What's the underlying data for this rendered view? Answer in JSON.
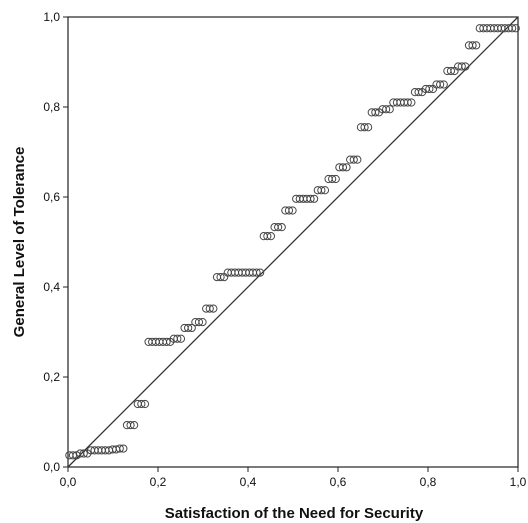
{
  "chart_data": {
    "type": "scatter",
    "title": "",
    "xlabel": "Satisfaction of the Need for Security",
    "ylabel": "General Level of Tolerance",
    "xlim": [
      0,
      1
    ],
    "ylim": [
      0,
      1
    ],
    "x_ticks": [
      "0,0",
      "0,2",
      "0,4",
      "0,6",
      "0,8",
      "1,0"
    ],
    "y_ticks": [
      "0,0",
      "0,2",
      "0,4",
      "0,6",
      "0,8",
      "1,0"
    ],
    "grid": false,
    "reference_line": {
      "from": [
        0,
        0
      ],
      "to": [
        1,
        1
      ]
    },
    "marker_color": "#444444",
    "points": {
      "x": [
        0.003,
        0.011,
        0.019,
        0.027,
        0.035,
        0.043,
        0.051,
        0.059,
        0.067,
        0.075,
        0.083,
        0.091,
        0.099,
        0.107,
        0.115,
        0.123,
        0.131,
        0.139,
        0.147,
        0.155,
        0.163,
        0.171,
        0.179,
        0.187,
        0.195,
        0.203,
        0.211,
        0.219,
        0.227,
        0.235,
        0.243,
        0.251,
        0.259,
        0.267,
        0.275,
        0.283,
        0.291,
        0.299,
        0.307,
        0.315,
        0.323,
        0.331,
        0.339,
        0.347,
        0.355,
        0.363,
        0.371,
        0.379,
        0.387,
        0.395,
        0.403,
        0.411,
        0.419,
        0.427,
        0.435,
        0.443,
        0.451,
        0.459,
        0.467,
        0.475,
        0.483,
        0.491,
        0.499,
        0.507,
        0.515,
        0.523,
        0.531,
        0.539,
        0.547,
        0.555,
        0.563,
        0.571,
        0.579,
        0.587,
        0.595,
        0.603,
        0.611,
        0.619,
        0.627,
        0.635,
        0.643,
        0.651,
        0.659,
        0.667,
        0.675,
        0.683,
        0.691,
        0.699,
        0.707,
        0.715,
        0.723,
        0.731,
        0.739,
        0.747,
        0.755,
        0.763,
        0.771,
        0.779,
        0.787,
        0.795,
        0.803,
        0.811,
        0.819,
        0.827,
        0.835,
        0.843,
        0.851,
        0.859,
        0.867,
        0.875,
        0.883,
        0.891,
        0.899,
        0.907,
        0.915,
        0.923,
        0.931,
        0.939,
        0.947,
        0.955,
        0.963,
        0.971,
        0.979,
        0.987,
        0.995
      ],
      "y": [
        0.026,
        0.026,
        0.026,
        0.03,
        0.03,
        0.03,
        0.037,
        0.037,
        0.037,
        0.037,
        0.037,
        0.037,
        0.039,
        0.039,
        0.041,
        0.041,
        0.093,
        0.093,
        0.093,
        0.14,
        0.14,
        0.14,
        0.278,
        0.278,
        0.278,
        0.278,
        0.278,
        0.278,
        0.278,
        0.285,
        0.285,
        0.285,
        0.309,
        0.309,
        0.309,
        0.322,
        0.322,
        0.322,
        0.352,
        0.352,
        0.352,
        0.422,
        0.422,
        0.422,
        0.432,
        0.432,
        0.432,
        0.432,
        0.432,
        0.432,
        0.432,
        0.432,
        0.432,
        0.432,
        0.513,
        0.513,
        0.513,
        0.533,
        0.533,
        0.533,
        0.57,
        0.57,
        0.57,
        0.596,
        0.596,
        0.596,
        0.596,
        0.596,
        0.596,
        0.615,
        0.615,
        0.615,
        0.64,
        0.64,
        0.64,
        0.666,
        0.666,
        0.666,
        0.683,
        0.683,
        0.683,
        0.755,
        0.755,
        0.755,
        0.788,
        0.788,
        0.788,
        0.795,
        0.795,
        0.795,
        0.81,
        0.81,
        0.81,
        0.81,
        0.81,
        0.81,
        0.833,
        0.833,
        0.833,
        0.84,
        0.84,
        0.84,
        0.85,
        0.85,
        0.85,
        0.88,
        0.88,
        0.88,
        0.89,
        0.89,
        0.89,
        0.937,
        0.937,
        0.937,
        0.975,
        0.975,
        0.975,
        0.975,
        0.975,
        0.975,
        0.975,
        0.975,
        0.975,
        0.975,
        0.975
      ]
    }
  }
}
